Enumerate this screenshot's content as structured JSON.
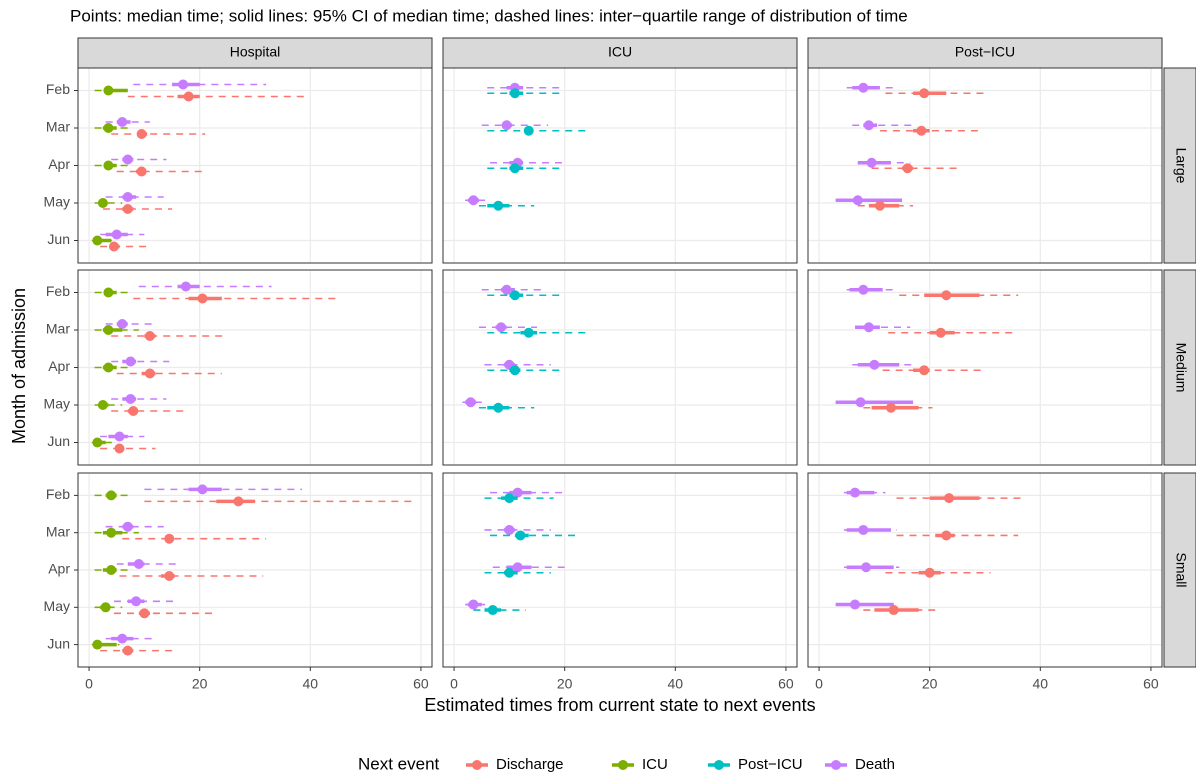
{
  "chart_data": {
    "type": "pointrange",
    "title": "Points: median time; solid lines: 95% CI of median time; dashed lines: inter−quartile range of distribution of time",
    "x_label": "Estimated times from current state to next events",
    "y_label": "Month of admission",
    "legend_title": "Next event",
    "columns": [
      "Hospital",
      "ICU",
      "Post−ICU"
    ],
    "rows": [
      "Large",
      "Medium",
      "Small"
    ],
    "categories": [
      "Feb",
      "Mar",
      "Apr",
      "May",
      "Jun"
    ],
    "xlim": [
      -2,
      62
    ],
    "xticks": [
      0,
      20,
      40,
      60
    ],
    "grid": true,
    "series": [
      {
        "name": "Discharge",
        "color": "#f8766d"
      },
      {
        "name": "ICU",
        "color": "#7cae00"
      },
      {
        "name": "Post−ICU",
        "color": "#00bfc4"
      },
      {
        "name": "Death",
        "color": "#c77cff"
      }
    ],
    "panels": [
      [
        {
          "series": [
            {
              "median": [
                18,
                9.5,
                9.5,
                7,
                4.5
              ],
              "ci_low": [
                16,
                9,
                8.5,
                6,
                4
              ],
              "ci_high": [
                20,
                10.5,
                10,
                8,
                5.5
              ],
              "iqr_low": [
                7,
                4,
                5,
                2.5,
                2
              ],
              "iqr_high": [
                39,
                21,
                21,
                15,
                10.5
              ]
            },
            {
              "median": [
                3.5,
                3.5,
                3.5,
                2.5,
                1.5
              ],
              "ci_low": [
                3,
                2.5,
                3,
                2,
                1
              ],
              "ci_high": [
                7,
                5,
                5,
                3,
                4
              ],
              "iqr_low": [
                1,
                1,
                1,
                1,
                0.5
              ],
              "iqr_high": [
                8,
                8,
                8,
                6,
                5
              ]
            },
            null,
            {
              "median": [
                17,
                6,
                7,
                7,
                5
              ],
              "ci_low": [
                15,
                5,
                6,
                6,
                3
              ],
              "ci_high": [
                20,
                7.5,
                8,
                8.5,
                7
              ],
              "iqr_low": [
                8,
                3,
                4,
                3,
                2
              ],
              "iqr_high": [
                32,
                11,
                14,
                13.5,
                10
              ]
            }
          ]
        },
        {
          "series": [
            null,
            null,
            {
              "median": [
                11,
                13.5,
                11,
                8,
                null
              ],
              "ci_low": [
                10,
                13,
                10,
                6,
                null
              ],
              "ci_high": [
                12.5,
                14,
                12.5,
                10,
                null
              ],
              "iqr_low": [
                6,
                6,
                6,
                4.5,
                null
              ],
              "iqr_high": [
                20,
                24.5,
                20,
                14.5,
                null
              ]
            },
            {
              "median": [
                11,
                9.5,
                11.5,
                3.5,
                null
              ],
              "ci_low": [
                9.5,
                9,
                10,
                2.5,
                null
              ],
              "ci_high": [
                12.5,
                10.5,
                12.5,
                4.5,
                null
              ],
              "iqr_low": [
                6,
                5,
                6.5,
                2,
                null
              ],
              "iqr_high": [
                19,
                17,
                19.5,
                6,
                null
              ]
            }
          ]
        },
        {
          "series": [
            {
              "median": [
                19,
                18.5,
                16,
                11,
                null
              ],
              "ci_low": [
                17,
                17,
                15,
                9,
                null
              ],
              "ci_high": [
                23,
                20,
                17,
                14.5,
                null
              ],
              "iqr_low": [
                12,
                11,
                9.5,
                7,
                null
              ],
              "iqr_high": [
                30,
                29,
                25,
                17,
                null
              ]
            },
            null,
            null,
            {
              "median": [
                8,
                9,
                9.5,
                7,
                null
              ],
              "ci_low": [
                6,
                8,
                7,
                3,
                null
              ],
              "ci_high": [
                11,
                10.5,
                13,
                15,
                null
              ],
              "iqr_low": [
                5,
                6,
                7,
                3,
                null
              ],
              "iqr_high": [
                14,
                17,
                16.5,
                15,
                null
              ]
            }
          ]
        }
      ],
      [
        {
          "series": [
            {
              "median": [
                20.5,
                11,
                11,
                8,
                5.5
              ],
              "ci_low": [
                18,
                10,
                9.5,
                7,
                5
              ],
              "ci_high": [
                24,
                12,
                12,
                8.5,
                6
              ],
              "iqr_low": [
                8,
                4,
                5,
                4,
                2
              ],
              "iqr_high": [
                45,
                24.5,
                24,
                17.5,
                12
              ]
            },
            {
              "median": [
                3.5,
                3.5,
                3.5,
                2.5,
                1.5
              ],
              "ci_low": [
                3,
                2.5,
                2.5,
                2,
                1
              ],
              "ci_high": [
                5,
                6,
                5,
                3.5,
                3
              ],
              "iqr_low": [
                1,
                1,
                1,
                1,
                0.5
              ],
              "iqr_high": [
                8,
                9,
                8,
                6,
                5
              ]
            },
            null,
            {
              "median": [
                17.5,
                6,
                7.5,
                7.5,
                5.5
              ],
              "ci_low": [
                16,
                5,
                6,
                6,
                3.5
              ],
              "ci_high": [
                20,
                7,
                8.5,
                8.5,
                7
              ],
              "iqr_low": [
                9,
                3,
                4,
                4,
                2
              ],
              "iqr_high": [
                33,
                11.5,
                14.5,
                14,
                10
              ]
            }
          ]
        },
        {
          "series": [
            null,
            null,
            {
              "median": [
                11,
                13.5,
                11,
                8,
                null
              ],
              "ci_low": [
                10,
                12,
                10,
                6,
                null
              ],
              "ci_high": [
                12.5,
                15,
                12,
                10,
                null
              ],
              "iqr_low": [
                6,
                6,
                6,
                4.5,
                null
              ],
              "iqr_high": [
                20,
                24.5,
                20,
                14.5,
                null
              ]
            },
            {
              "median": [
                9.5,
                8.5,
                10,
                3,
                null
              ],
              "ci_low": [
                8.5,
                7.5,
                9,
                2,
                null
              ],
              "ci_high": [
                11,
                9.5,
                11,
                4,
                null
              ],
              "iqr_low": [
                5,
                4.5,
                5.5,
                1.5,
                null
              ],
              "iqr_high": [
                16.5,
                15,
                17.5,
                5,
                null
              ]
            }
          ]
        },
        {
          "series": [
            {
              "median": [
                23,
                22,
                19,
                13,
                null
              ],
              "ci_low": [
                19,
                20,
                17,
                9.5,
                null
              ],
              "ci_high": [
                29,
                24.5,
                20,
                18,
                null
              ],
              "iqr_low": [
                14.5,
                12.5,
                11.5,
                8,
                null
              ],
              "iqr_high": [
                36,
                35,
                30,
                20.5,
                null
              ]
            },
            null,
            null,
            {
              "median": [
                8,
                9,
                10,
                7.5,
                null
              ],
              "ci_low": [
                5.5,
                6.5,
                7,
                3,
                null
              ],
              "ci_high": [
                11.5,
                11,
                14.5,
                17,
                null
              ],
              "iqr_low": [
                5,
                6.5,
                6,
                3,
                null
              ],
              "iqr_high": [
                14,
                16.5,
                17.5,
                17,
                null
              ]
            }
          ]
        }
      ],
      [
        {
          "series": [
            {
              "median": [
                27,
                14.5,
                14.5,
                10,
                7
              ],
              "ci_low": [
                23,
                14,
                13,
                9,
                6
              ],
              "ci_high": [
                30,
                15,
                15.5,
                11,
                8
              ],
              "iqr_low": [
                10,
                6,
                5.5,
                4.5,
                2
              ],
              "iqr_high": [
                59,
                32,
                31.5,
                22.5,
                16
              ]
            },
            {
              "median": [
                4,
                4,
                4,
                3,
                1.5
              ],
              "ci_low": [
                3,
                2.5,
                2.5,
                2,
                1
              ],
              "ci_high": [
                5,
                6,
                5,
                3.5,
                5
              ],
              "iqr_low": [
                1,
                1,
                1,
                1,
                0.5
              ],
              "iqr_high": [
                8,
                9,
                8,
                6,
                5.5
              ]
            },
            null,
            {
              "median": [
                20.5,
                7,
                9,
                8.5,
                6
              ],
              "ci_low": [
                18,
                6,
                7,
                7,
                4
              ],
              "ci_high": [
                24,
                8,
                10,
                10,
                8
              ],
              "iqr_low": [
                10,
                3,
                5,
                4.5,
                3
              ],
              "iqr_high": [
                38.5,
                13.5,
                16.5,
                16,
                12
              ]
            }
          ]
        },
        {
          "series": [
            null,
            null,
            {
              "median": [
                10,
                12,
                10,
                7,
                null
              ],
              "ci_low": [
                8.5,
                11,
                9,
                5.5,
                null
              ],
              "ci_high": [
                11.5,
                13.5,
                11.5,
                8.5,
                null
              ],
              "iqr_low": [
                5.5,
                6.5,
                5.5,
                3.5,
                null
              ],
              "iqr_high": [
                18,
                22,
                17.5,
                13,
                null
              ]
            },
            {
              "median": [
                11.5,
                10,
                11.5,
                3.5,
                null
              ],
              "ci_low": [
                10,
                9,
                9.5,
                2.5,
                null
              ],
              "ci_high": [
                14,
                11,
                14,
                5,
                null
              ],
              "iqr_low": [
                6.5,
                5.5,
                7,
                2,
                null
              ],
              "iqr_high": [
                19.5,
                17.5,
                20,
                6.5,
                null
              ]
            }
          ]
        },
        {
          "series": [
            {
              "median": [
                23.5,
                23,
                20,
                13.5,
                null
              ],
              "ci_low": [
                20,
                21,
                18,
                10,
                null
              ],
              "ci_high": [
                29,
                24.5,
                22,
                18,
                null
              ],
              "iqr_low": [
                14,
                14,
                12,
                8,
                null
              ],
              "iqr_high": [
                37,
                36,
                31,
                21,
                null
              ]
            },
            null,
            null,
            {
              "median": [
                6.5,
                8,
                8.5,
                6.5,
                null
              ],
              "ci_low": [
                5,
                5,
                5,
                3,
                null
              ],
              "ci_high": [
                10,
                13,
                13.5,
                13.5,
                null
              ],
              "iqr_low": [
                4.5,
                4.5,
                4.5,
                3,
                null
              ],
              "iqr_high": [
                12,
                14,
                14.5,
                13.5,
                null
              ]
            }
          ]
        }
      ]
    ]
  }
}
